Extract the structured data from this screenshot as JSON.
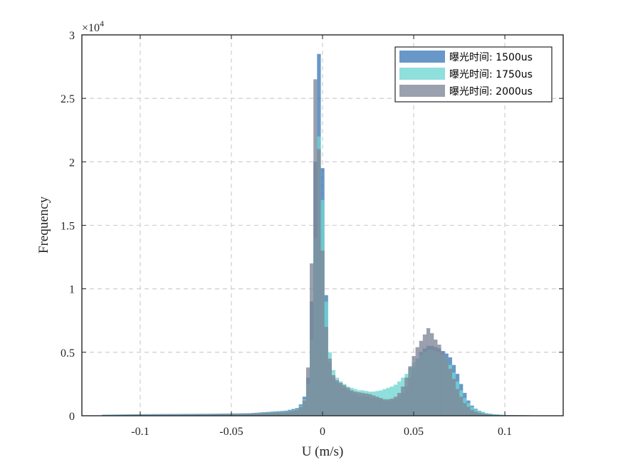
{
  "chart_data": {
    "type": "histogram",
    "xlabel": "U (m/s)",
    "ylabel": "Frequency",
    "y_exponent_label": "×10",
    "y_exponent_power": "4",
    "y_scale": 10000,
    "xlim": [
      -0.132,
      0.132
    ],
    "ylim": [
      0,
      30000
    ],
    "xticks": [
      -0.1,
      -0.05,
      0,
      0.05,
      0.1
    ],
    "xtick_labels": [
      "-0.1",
      "-0.05",
      "0",
      "0.05",
      "0.1"
    ],
    "yticks": [
      0,
      5000,
      10000,
      15000,
      20000,
      25000,
      30000
    ],
    "ytick_labels": [
      "0",
      "0.5",
      "1",
      "1.5",
      "2",
      "2.5",
      "3"
    ],
    "grid": true,
    "legend_position": "top-right",
    "bin_width": 0.002,
    "series": [
      {
        "name": "曝光时间: 1500us",
        "color": "#3d7ab8",
        "bins": [
          [
            -0.12,
            80
          ],
          [
            -0.1,
            120
          ],
          [
            -0.08,
            140
          ],
          [
            -0.06,
            160
          ],
          [
            -0.04,
            200
          ],
          [
            -0.02,
            400
          ],
          [
            -0.014,
            600
          ],
          [
            -0.012,
            900
          ],
          [
            -0.01,
            1500
          ],
          [
            -0.008,
            3000
          ],
          [
            -0.006,
            9000
          ],
          [
            -0.004,
            20000
          ],
          [
            -0.002,
            28500
          ],
          [
            0.0,
            19500
          ],
          [
            0.002,
            9500
          ],
          [
            0.004,
            4200
          ],
          [
            0.006,
            3000
          ],
          [
            0.008,
            2600
          ],
          [
            0.01,
            2400
          ],
          [
            0.012,
            2200
          ],
          [
            0.014,
            2000
          ],
          [
            0.016,
            1800
          ],
          [
            0.018,
            1700
          ],
          [
            0.02,
            1600
          ],
          [
            0.022,
            1550
          ],
          [
            0.024,
            1500
          ],
          [
            0.026,
            1450
          ],
          [
            0.028,
            1400
          ],
          [
            0.03,
            1350
          ],
          [
            0.032,
            1300
          ],
          [
            0.034,
            1200
          ],
          [
            0.036,
            1150
          ],
          [
            0.038,
            1200
          ],
          [
            0.04,
            1300
          ],
          [
            0.042,
            1500
          ],
          [
            0.044,
            1800
          ],
          [
            0.046,
            2300
          ],
          [
            0.048,
            3000
          ],
          [
            0.05,
            3800
          ],
          [
            0.052,
            4500
          ],
          [
            0.054,
            5000
          ],
          [
            0.056,
            5300
          ],
          [
            0.058,
            5500
          ],
          [
            0.06,
            5500
          ],
          [
            0.062,
            5400
          ],
          [
            0.064,
            5300
          ],
          [
            0.066,
            5100
          ],
          [
            0.068,
            4900
          ],
          [
            0.07,
            4600
          ],
          [
            0.072,
            4000
          ],
          [
            0.074,
            3300
          ],
          [
            0.076,
            2500
          ],
          [
            0.078,
            1800
          ],
          [
            0.08,
            1200
          ],
          [
            0.082,
            800
          ],
          [
            0.084,
            550
          ],
          [
            0.086,
            400
          ],
          [
            0.088,
            300
          ],
          [
            0.09,
            200
          ],
          [
            0.092,
            160
          ],
          [
            0.094,
            120
          ],
          [
            0.1,
            60
          ],
          [
            0.12,
            20
          ]
        ]
      },
      {
        "name": "曝光时间: 1750us",
        "color": "#6fd6d2",
        "bins": [
          [
            -0.12,
            70
          ],
          [
            -0.1,
            100
          ],
          [
            -0.08,
            120
          ],
          [
            -0.06,
            140
          ],
          [
            -0.04,
            180
          ],
          [
            -0.02,
            350
          ],
          [
            -0.014,
            500
          ],
          [
            -0.012,
            800
          ],
          [
            -0.01,
            1300
          ],
          [
            -0.008,
            2500
          ],
          [
            -0.006,
            6000
          ],
          [
            -0.004,
            14000
          ],
          [
            -0.002,
            22000
          ],
          [
            0.0,
            17000
          ],
          [
            0.002,
            9000
          ],
          [
            0.004,
            5000
          ],
          [
            0.006,
            3600
          ],
          [
            0.008,
            3000
          ],
          [
            0.01,
            2700
          ],
          [
            0.012,
            2500
          ],
          [
            0.014,
            2300
          ],
          [
            0.016,
            2200
          ],
          [
            0.018,
            2100
          ],
          [
            0.02,
            2000
          ],
          [
            0.022,
            2000
          ],
          [
            0.024,
            1950
          ],
          [
            0.026,
            1900
          ],
          [
            0.028,
            1900
          ],
          [
            0.03,
            1950
          ],
          [
            0.032,
            2000
          ],
          [
            0.034,
            2100
          ],
          [
            0.036,
            2200
          ],
          [
            0.038,
            2300
          ],
          [
            0.04,
            2450
          ],
          [
            0.042,
            2700
          ],
          [
            0.044,
            3000
          ],
          [
            0.046,
            3300
          ],
          [
            0.048,
            3800
          ],
          [
            0.05,
            4200
          ],
          [
            0.052,
            4500
          ],
          [
            0.054,
            4800
          ],
          [
            0.056,
            5000
          ],
          [
            0.058,
            5200
          ],
          [
            0.06,
            5200
          ],
          [
            0.062,
            5100
          ],
          [
            0.064,
            5000
          ],
          [
            0.066,
            4800
          ],
          [
            0.068,
            4500
          ],
          [
            0.07,
            4000
          ],
          [
            0.072,
            3400
          ],
          [
            0.074,
            2700
          ],
          [
            0.076,
            2000
          ],
          [
            0.078,
            1400
          ],
          [
            0.08,
            1000
          ],
          [
            0.082,
            700
          ],
          [
            0.084,
            500
          ],
          [
            0.086,
            380
          ],
          [
            0.088,
            280
          ],
          [
            0.09,
            200
          ],
          [
            0.092,
            150
          ],
          [
            0.094,
            110
          ],
          [
            0.1,
            50
          ],
          [
            0.12,
            20
          ]
        ]
      },
      {
        "name": "曝光时间: 2000us",
        "color": "#7d8596",
        "bins": [
          [
            -0.12,
            60
          ],
          [
            -0.1,
            90
          ],
          [
            -0.08,
            100
          ],
          [
            -0.06,
            120
          ],
          [
            -0.04,
            160
          ],
          [
            -0.02,
            300
          ],
          [
            -0.014,
            450
          ],
          [
            -0.012,
            700
          ],
          [
            -0.01,
            1200
          ],
          [
            -0.008,
            3800
          ],
          [
            -0.006,
            12000
          ],
          [
            -0.004,
            26500
          ],
          [
            -0.002,
            21000
          ],
          [
            0.0,
            13000
          ],
          [
            0.002,
            7000
          ],
          [
            0.004,
            4500
          ],
          [
            0.006,
            3200
          ],
          [
            0.008,
            2800
          ],
          [
            0.01,
            2600
          ],
          [
            0.012,
            2400
          ],
          [
            0.014,
            2200
          ],
          [
            0.016,
            2000
          ],
          [
            0.018,
            1900
          ],
          [
            0.02,
            1850
          ],
          [
            0.022,
            1800
          ],
          [
            0.024,
            1750
          ],
          [
            0.026,
            1700
          ],
          [
            0.028,
            1600
          ],
          [
            0.03,
            1500
          ],
          [
            0.032,
            1400
          ],
          [
            0.034,
            1300
          ],
          [
            0.036,
            1300
          ],
          [
            0.038,
            1350
          ],
          [
            0.04,
            1500
          ],
          [
            0.042,
            1800
          ],
          [
            0.044,
            2300
          ],
          [
            0.046,
            3000
          ],
          [
            0.048,
            3900
          ],
          [
            0.05,
            4700
          ],
          [
            0.052,
            5400
          ],
          [
            0.054,
            5900
          ],
          [
            0.056,
            6400
          ],
          [
            0.058,
            6900
          ],
          [
            0.06,
            6500
          ],
          [
            0.062,
            6000
          ],
          [
            0.064,
            5600
          ],
          [
            0.066,
            5000
          ],
          [
            0.068,
            4500
          ],
          [
            0.07,
            3700
          ],
          [
            0.072,
            2900
          ],
          [
            0.074,
            2100
          ],
          [
            0.076,
            1500
          ],
          [
            0.078,
            1000
          ],
          [
            0.08,
            700
          ],
          [
            0.082,
            450
          ],
          [
            0.084,
            320
          ],
          [
            0.086,
            230
          ],
          [
            0.088,
            160
          ],
          [
            0.09,
            120
          ],
          [
            0.092,
            90
          ],
          [
            0.094,
            70
          ],
          [
            0.1,
            30
          ],
          [
            0.12,
            10
          ]
        ]
      }
    ]
  }
}
